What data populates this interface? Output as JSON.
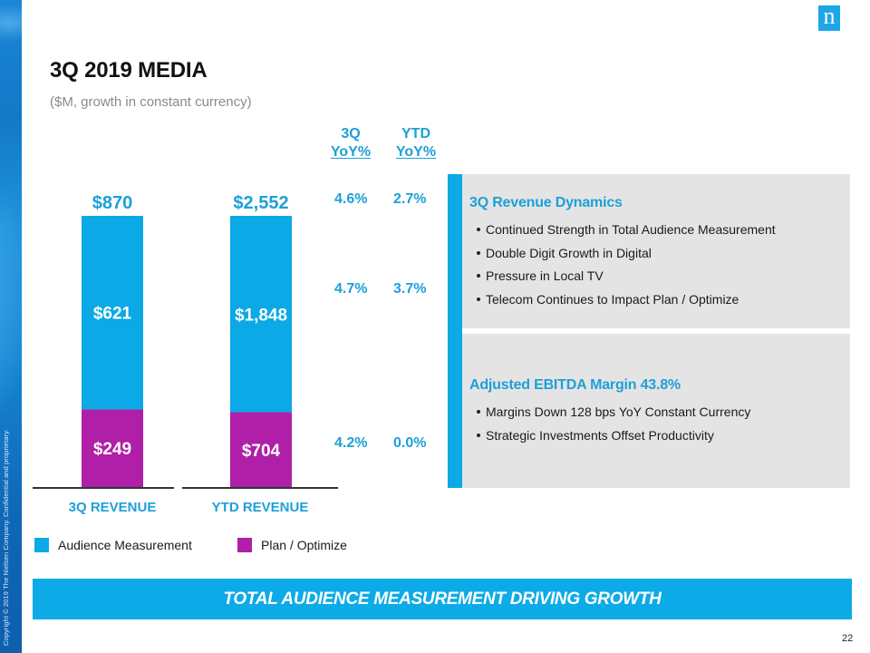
{
  "slide": {
    "title": "3Q 2019 MEDIA",
    "subtitle": "($M, growth in constant currency)",
    "logo_glyph": "n",
    "copyright": "Copyright © 2019 The Nielsen Company. Confidential and proprietary.",
    "page_number": "22",
    "banner": "TOTAL AUDIENCE MEASUREMENT DRIVING GROWTH",
    "colors": {
      "accent_blue": "#0ba9e6",
      "text_blue": "#1da0d8",
      "plan_purple": "#b01fa8",
      "panel_gray": "#e4e4e4"
    }
  },
  "growth_table": {
    "headers": [
      {
        "line1": "3Q",
        "line2": "YoY%"
      },
      {
        "line1": "YTD",
        "line2": "YoY%"
      }
    ],
    "rows": [
      {
        "segment": "Total",
        "q3": "4.6%",
        "ytd": "2.7%"
      },
      {
        "segment": "Audience Measurement",
        "q3": "4.7%",
        "ytd": "3.7%"
      },
      {
        "segment": "Plan / Optimize",
        "q3": "4.2%",
        "ytd": "0.0%"
      }
    ]
  },
  "panels": [
    {
      "heading": "3Q Revenue Dynamics",
      "bullets": [
        "Continued Strength in Total Audience Measurement",
        "Double Digit Growth in Digital",
        "Pressure in Local TV",
        "Telecom Continues to Impact Plan / Optimize"
      ]
    },
    {
      "heading": "Adjusted EBITDA Margin 43.8%",
      "bullets": [
        "Margins Down 128 bps YoY  Constant Currency",
        "Strategic Investments  Offset Productivity"
      ]
    }
  ],
  "chart_data": {
    "type": "bar",
    "stacked": true,
    "title": "",
    "xlabel": "",
    "ylabel": "",
    "categories": [
      "3Q REVENUE",
      "YTD REVENUE"
    ],
    "totals": [
      870,
      2552
    ],
    "total_labels": [
      "$870",
      "$2,552"
    ],
    "series": [
      {
        "name": "Plan / Optimize",
        "color": "#b01fa8",
        "values": [
          249,
          704
        ],
        "labels": [
          "$249",
          "$704"
        ]
      },
      {
        "name": "Audience Measurement",
        "color": "#0ba9e6",
        "values": [
          621,
          1848
        ],
        "labels": [
          "$621",
          "$1,848"
        ]
      }
    ],
    "legend": [
      "Audience Measurement",
      "Plan / Optimize"
    ],
    "legend_position": "bottom-left",
    "axes_visible": false,
    "grid": false,
    "note": "Each bar is normalized to its own total (100% stacked height)"
  }
}
